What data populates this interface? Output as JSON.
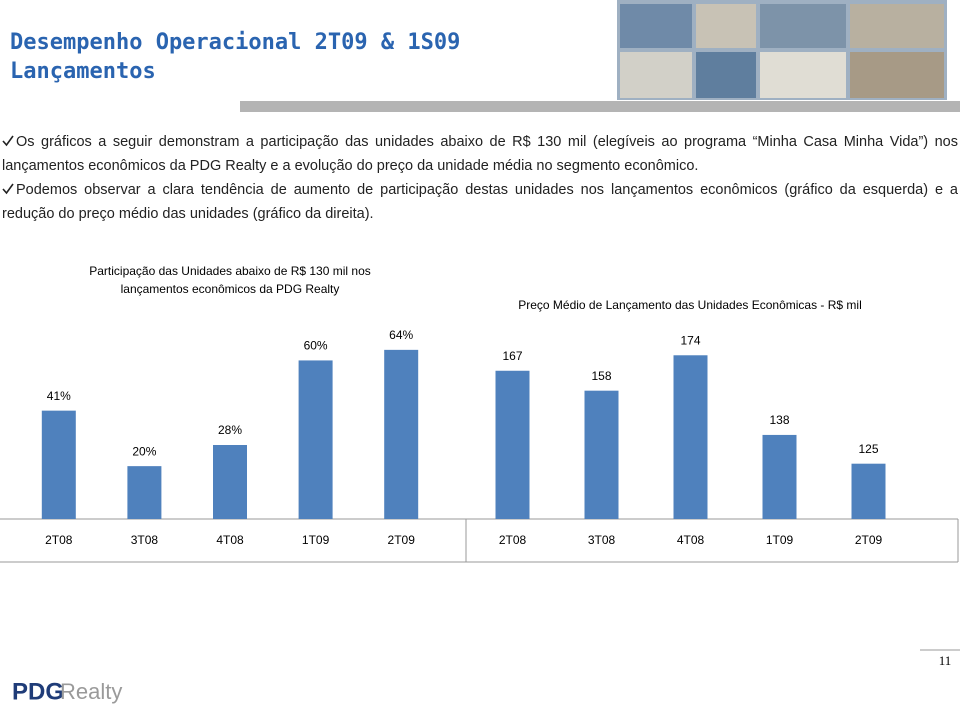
{
  "header": {
    "title": [
      "Desempenho Operacional 2T09 & 1S09",
      "Lançamentos"
    ]
  },
  "bullets": [
    "Os gráficos a seguir demonstram a participação das unidades abaixo de R$ 130 mil (elegíveis ao programa “Minha Casa Minha Vida”) nos lançamentos econômicos da PDG Realty e a evolução do preço da unidade média no segmento econômico.",
    "Podemos observar a clara tendência de aumento de participação destas unidades nos lançamentos econômicos (gráfico da esquerda) e a redução do preço médio das unidades (gráfico da direita)."
  ],
  "chart_data": [
    {
      "type": "bar",
      "title": [
        "Participação das Unidades abaixo de R$ 130 mil nos",
        "lançamentos econômicos da PDG Realty"
      ],
      "categories": [
        "2T08",
        "3T08",
        "4T08",
        "1T09",
        "2T09"
      ],
      "values": [
        41,
        20,
        28,
        60,
        64
      ],
      "value_labels": [
        "41%",
        "20%",
        "28%",
        "60%",
        "64%"
      ],
      "color": "#4f81bd",
      "ylim": [
        0,
        70
      ]
    },
    {
      "type": "bar",
      "title": [
        "Preço Médio de Lançamento das Unidades Econômicas - R$ mil"
      ],
      "categories": [
        "2T08",
        "3T08",
        "4T08",
        "1T09",
        "2T09"
      ],
      "values": [
        167,
        158,
        174,
        138,
        125
      ],
      "color": "#4f81bd",
      "ylim": [
        100,
        180
      ]
    }
  ],
  "footer": {
    "page": "11",
    "logo": [
      "PDG",
      "Realty"
    ]
  }
}
